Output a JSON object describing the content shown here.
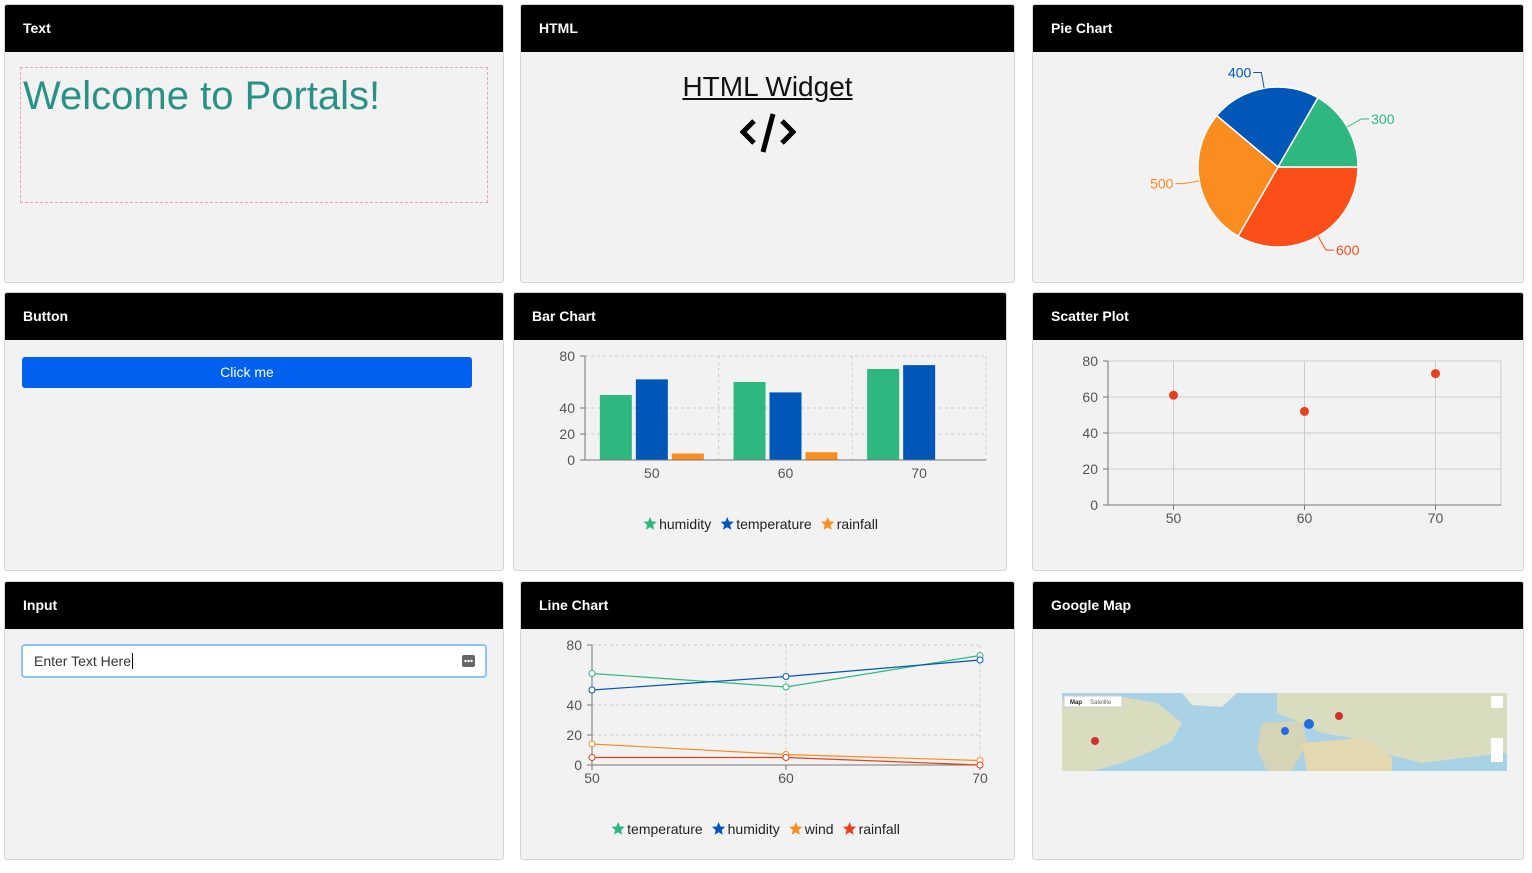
{
  "panels": [
    {
      "title": "Text",
      "text": "Welcome to Portals!"
    },
    {
      "title": "HTML",
      "heading": "HTML Widget"
    },
    {
      "title": "Pie Chart",
      "chart": {
        "type": "pie",
        "values": [
          600,
          500,
          400,
          300
        ],
        "colors": [
          "#fc4e18",
          "#fb8c1f",
          "#0057b8",
          "#2eb87f"
        ]
      }
    },
    {
      "title": "Button",
      "button": "Click me"
    },
    {
      "title": "Bar Chart",
      "chart": {
        "type": "bar",
        "categories": [
          "50",
          "60",
          "70"
        ],
        "series": [
          {
            "name": "humidity",
            "color": "#2eb87f",
            "values": [
              50,
              60,
              70
            ]
          },
          {
            "name": "temperature",
            "color": "#0057b8",
            "values": [
              62,
              52,
              73
            ]
          },
          {
            "name": "rainfall",
            "color": "#fb8c1f",
            "values": [
              5,
              6,
              0
            ]
          }
        ],
        "ylim": [
          0,
          80
        ],
        "yticks": [
          0,
          20,
          40,
          80
        ],
        "grid": true
      }
    },
    {
      "title": "Scatter Plot",
      "chart": {
        "type": "scatter",
        "x": [
          50,
          60,
          70
        ],
        "values": [
          61,
          52,
          73
        ],
        "color": "#e8401c",
        "xlim": [
          45,
          75
        ],
        "xticks": [
          50,
          60,
          70
        ],
        "ylim": [
          0,
          80
        ],
        "yticks": [
          0,
          20,
          40,
          60,
          80
        ],
        "grid": true
      }
    },
    {
      "title": "Input",
      "placeholder": "Enter Text Here"
    },
    {
      "title": "Line Chart",
      "chart": {
        "type": "line",
        "x": [
          50,
          60,
          70
        ],
        "series": [
          {
            "name": "temperature",
            "color": "#2eb87f",
            "values": [
              61,
              52,
              73
            ]
          },
          {
            "name": "humidity",
            "color": "#0057b8",
            "values": [
              50,
              59,
              70
            ]
          },
          {
            "name": "wind",
            "color": "#fb8c1f",
            "values": [
              14,
              7,
              3
            ]
          },
          {
            "name": "rainfall",
            "color": "#e8401c",
            "values": [
              5,
              5,
              0
            ]
          }
        ],
        "xlim": [
          50,
          70
        ],
        "xticks": [
          50,
          60,
          70
        ],
        "ylim": [
          0,
          80
        ],
        "yticks": [
          0,
          20,
          40,
          80
        ],
        "grid": true
      }
    },
    {
      "title": "Google Map",
      "map_tabs": [
        "Map",
        "Satellite"
      ]
    }
  ]
}
